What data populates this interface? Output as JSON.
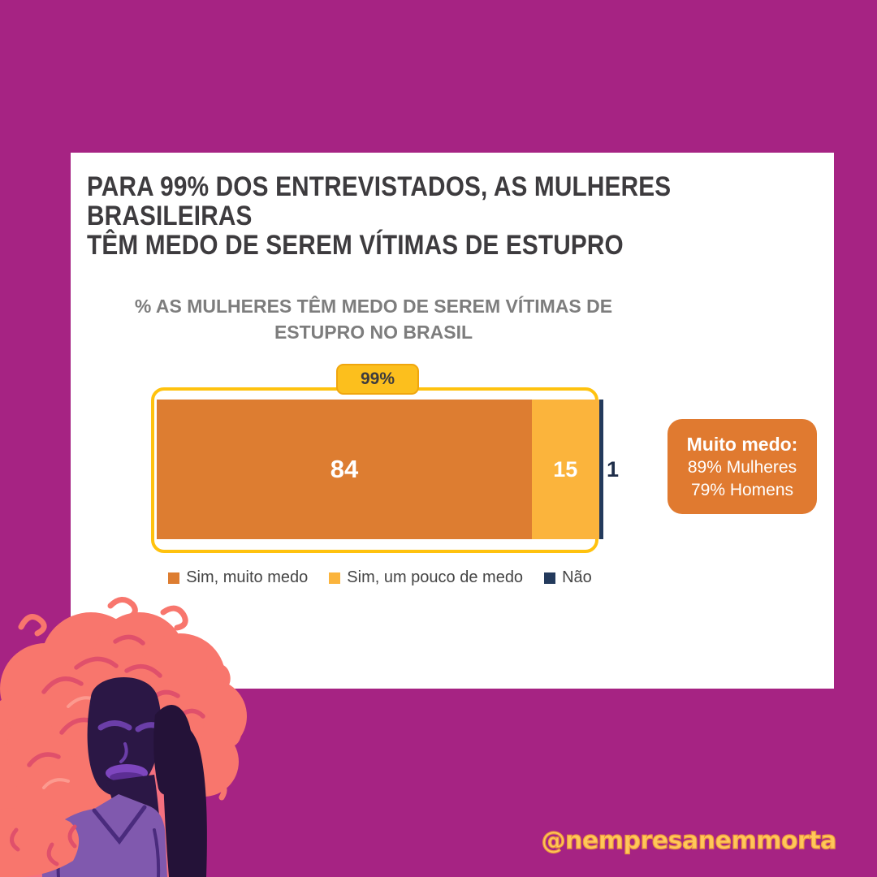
{
  "page": {
    "background_color": "#A62383"
  },
  "card": {
    "headline_line1": "PARA 99% DOS ENTREVISTADOS, AS MULHERES BRASILEIRAS",
    "headline_line2": "TÊM MEDO DE SEREM VÍTIMAS DE ESTUPRO"
  },
  "chart_data": {
    "type": "bar",
    "variant": "horizontal-stacked-100",
    "title": "% AS MULHERES TÊM MEDO DE SEREM VÍTIMAS DE ESTUPRO NO BRASIL",
    "title_line1": "% AS MULHERES TÊM MEDO DE SEREM VÍTIMAS DE",
    "title_line2": "ESTUPRO NO BRASIL",
    "categories": [
      "Sim, muito medo",
      "Sim, um pouco de medo",
      "Não"
    ],
    "values": [
      84,
      15,
      1
    ],
    "value_labels": [
      "84",
      "15",
      "1"
    ],
    "colors": [
      "#DD7D31",
      "#FBB43C",
      "#233A5C"
    ],
    "xlim": [
      0,
      100
    ],
    "legend_position": "bottom",
    "highlight": {
      "label": "99%",
      "color": "#FFC20E"
    }
  },
  "callout": {
    "bg": "#E07A30",
    "title": "Muito medo:",
    "line1": "89% Mulheres",
    "line2": "79% Homens"
  },
  "footer": {
    "handle": "@nempresanemmorta",
    "color": "#FFC75A"
  },
  "illustration": {
    "description": "woman with pink curly hair resting head on hand"
  }
}
